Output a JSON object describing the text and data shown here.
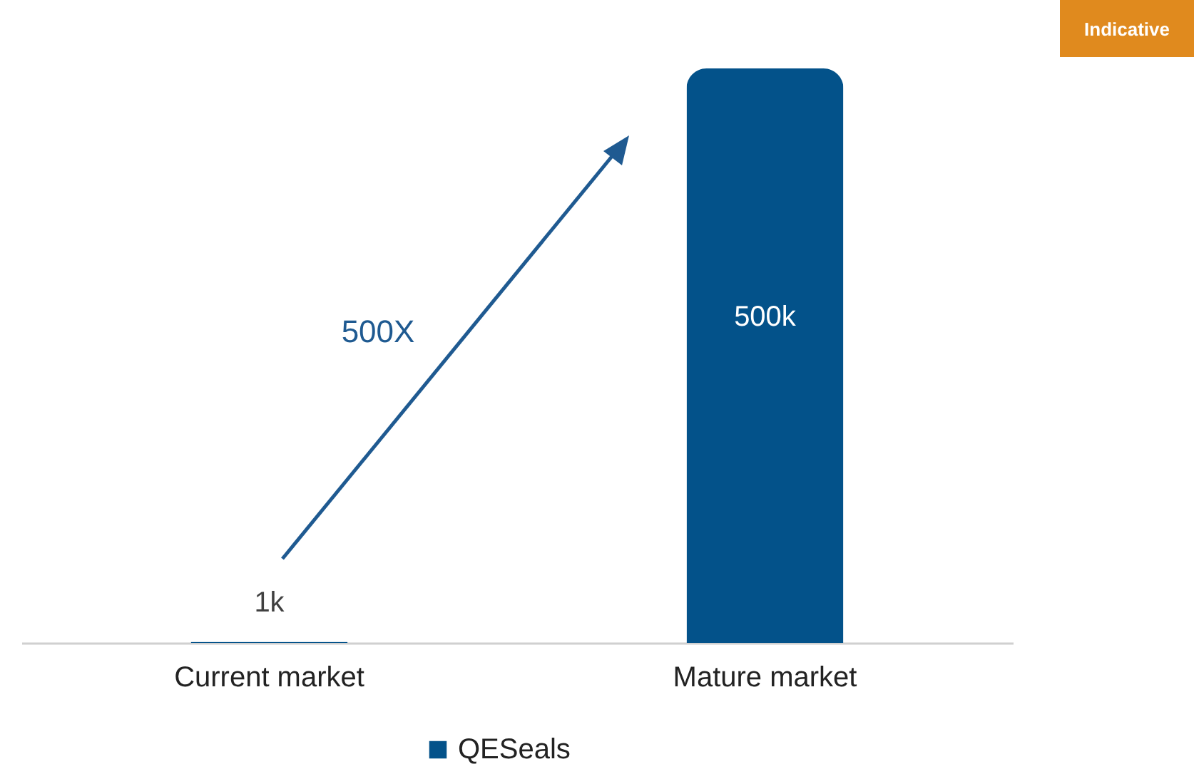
{
  "chart_data": {
    "type": "bar",
    "categories": [
      "Current market",
      "Mature market"
    ],
    "series": [
      {
        "name": "QESeals",
        "color": "#03528a",
        "values": [
          1000,
          500000
        ],
        "value_labels": [
          "1k",
          "500k"
        ]
      }
    ],
    "annotations": [
      "Indicative",
      "500X"
    ],
    "legend": "bottom",
    "grid": false
  }
}
